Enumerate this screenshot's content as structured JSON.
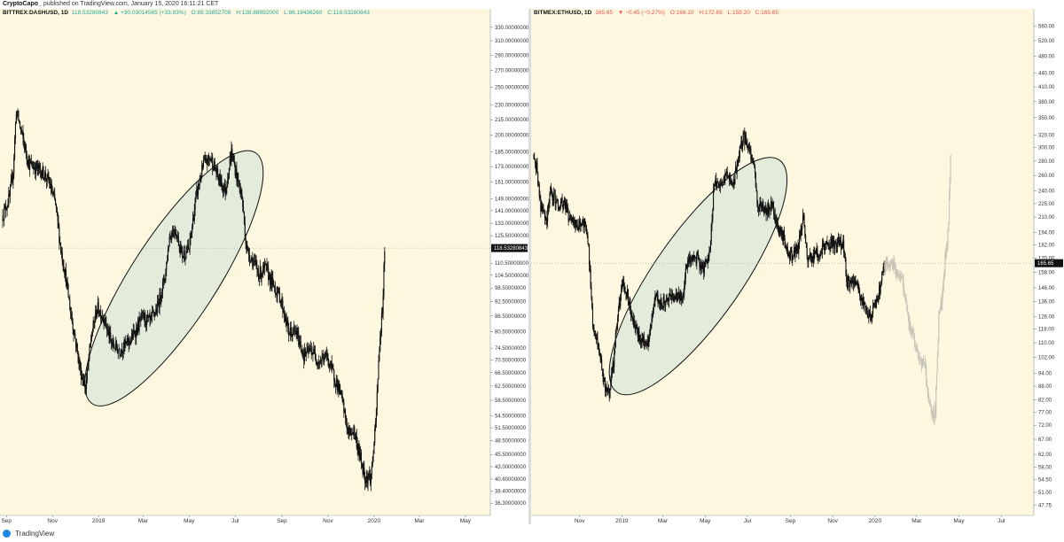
{
  "header": {
    "author": "CryptoCapo_",
    "published": "published on TradingView.com, January 15, 2020 16:11:21 CET"
  },
  "footer": {
    "brand": "TradingView"
  },
  "colors": {
    "plot_bg": "#fdf7e0",
    "ellipse_fill": "#e3ecdb",
    "candle": "#111111",
    "projection": "#c9c4b8",
    "price_box": "#111111"
  },
  "chart_data": [
    {
      "type": "candlestick",
      "legend": {
        "symbol": "BITTREX:DASHUSD, 1D",
        "last": "118.53280843",
        "change": "▲ +30.03014565 (+33.93%)",
        "open": "O:89.33852708",
        "high": "H:138.88992000",
        "low": "L:86.19436260",
        "close": "C:118.53280843"
      },
      "y_axis": {
        "scale": "log",
        "range": [
          34.3,
          345
        ],
        "ticks": [
          "36.30000000",
          "38.40000000",
          "40.60000000",
          "43.00000000",
          "45.50000000",
          "48.50000000",
          "51.50000000",
          "54.50000000",
          "58.50000000",
          "62.50000000",
          "66.50000000",
          "70.50000000",
          "74.50000000",
          "80.50000000",
          "86.50000000",
          "92.50000000",
          "98.50000000",
          "104.50000000",
          "110.50000000",
          "125.50000000",
          "133.00000000",
          "141.00000000",
          "149.00000000",
          "161.00000000",
          "173.00000000",
          "185.00000000",
          "200.00000000",
          "215.00000000",
          "230.00000000",
          "250.00000000",
          "270.00000000",
          "290.00000000",
          "310.00000000",
          "330.00000000"
        ],
        "tick_values": [
          36.3,
          38.4,
          40.6,
          43,
          45.5,
          48.5,
          51.5,
          54.5,
          58.5,
          62.5,
          66.5,
          70.5,
          74.5,
          80.5,
          86.5,
          92.5,
          98.5,
          104.5,
          110.5,
          125.5,
          133,
          141,
          149,
          161,
          173,
          185,
          200,
          215,
          230,
          250,
          270,
          290,
          310,
          330
        ],
        "last_price_label": "118.53280843",
        "last_price": 118.53
      },
      "x_axis": {
        "range": [
          "2018-08-27",
          "2020-06-03"
        ],
        "labels": [
          "Sep",
          "Nov",
          "2019",
          "Mar",
          "May",
          "Jul",
          "Sep",
          "Nov",
          "2020",
          "Mar",
          "May"
        ],
        "label_dates": [
          "2018-09-01",
          "2018-11-01",
          "2019-01-01",
          "2019-03-01",
          "2019-05-01",
          "2019-07-01",
          "2019-09-01",
          "2019-11-01",
          "2020-01-01",
          "2020-03-01",
          "2020-05-01"
        ]
      },
      "anchors": [
        [
          "2018-08-27",
          138
        ],
        [
          "2018-09-05",
          150
        ],
        [
          "2018-09-10",
          170
        ],
        [
          "2018-09-14",
          225
        ],
        [
          "2018-09-20",
          205
        ],
        [
          "2018-09-25",
          190
        ],
        [
          "2018-10-01",
          175
        ],
        [
          "2018-10-10",
          172
        ],
        [
          "2018-10-20",
          168
        ],
        [
          "2018-10-28",
          160
        ],
        [
          "2018-11-05",
          145
        ],
        [
          "2018-11-12",
          118
        ],
        [
          "2018-11-18",
          105
        ],
        [
          "2018-11-25",
          88
        ],
        [
          "2018-12-01",
          78
        ],
        [
          "2018-12-08",
          67
        ],
        [
          "2018-12-15",
          62
        ],
        [
          "2018-12-22",
          78
        ],
        [
          "2018-12-30",
          90
        ],
        [
          "2019-01-08",
          86
        ],
        [
          "2019-01-18",
          76
        ],
        [
          "2019-01-28",
          74
        ],
        [
          "2019-02-08",
          76
        ],
        [
          "2019-02-18",
          80
        ],
        [
          "2019-02-28",
          86
        ],
        [
          "2019-03-10",
          84
        ],
        [
          "2019-03-20",
          90
        ],
        [
          "2019-03-30",
          104
        ],
        [
          "2019-04-05",
          125
        ],
        [
          "2019-04-12",
          130
        ],
        [
          "2019-04-22",
          115
        ],
        [
          "2019-05-01",
          118
        ],
        [
          "2019-05-10",
          150
        ],
        [
          "2019-05-20",
          175
        ],
        [
          "2019-05-30",
          180
        ],
        [
          "2019-06-08",
          165
        ],
        [
          "2019-06-18",
          155
        ],
        [
          "2019-06-26",
          185
        ],
        [
          "2019-07-02",
          168
        ],
        [
          "2019-07-10",
          150
        ],
        [
          "2019-07-16",
          118
        ],
        [
          "2019-07-24",
          112
        ],
        [
          "2019-08-02",
          105
        ],
        [
          "2019-08-10",
          108
        ],
        [
          "2019-08-20",
          100
        ],
        [
          "2019-08-30",
          94
        ],
        [
          "2019-09-10",
          80
        ],
        [
          "2019-09-20",
          80
        ],
        [
          "2019-09-30",
          72
        ],
        [
          "2019-10-10",
          74
        ],
        [
          "2019-10-20",
          70
        ],
        [
          "2019-10-30",
          72
        ],
        [
          "2019-11-08",
          66
        ],
        [
          "2019-11-18",
          60
        ],
        [
          "2019-11-28",
          50
        ],
        [
          "2019-12-05",
          51
        ],
        [
          "2019-12-12",
          46
        ],
        [
          "2019-12-20",
          41
        ],
        [
          "2019-12-28",
          41
        ],
        [
          "2020-01-03",
          52
        ],
        [
          "2020-01-08",
          75
        ],
        [
          "2020-01-12",
          89
        ],
        [
          "2020-01-15",
          118.5
        ]
      ],
      "ellipse": {
        "center": [
          "2019-04-11",
          103
        ],
        "rx_days": 135,
        "span_value": [
          60,
          225
        ],
        "angle_deg": -57
      }
    },
    {
      "type": "candlestick",
      "legend": {
        "symbol": "BITMEX:ETHUSD, 1D",
        "last": "165.65",
        "change": "▼ −0.45 (−0.27%)",
        "open": "O:166.10",
        "high": "H:172.65",
        "low": "L:159.20",
        "close": "C:165.65"
      },
      "y_axis": {
        "scale": "log",
        "range": [
          45.3,
          585
        ],
        "ticks": [
          "47.75",
          "51.00",
          "54.50",
          "58.00",
          "62.00",
          "67.00",
          "72.00",
          "77.00",
          "82.00",
          "88.00",
          "94.00",
          "102.00",
          "110.00",
          "118.00",
          "126.00",
          "136.00",
          "146.00",
          "158.00",
          "170.00",
          "182.00",
          "194.00",
          "210.00",
          "225.00",
          "240.00",
          "260.00",
          "280.00",
          "300.00",
          "320.00",
          "350.00",
          "380.00",
          "410.00",
          "440.00",
          "480.00",
          "520.00",
          "560.00"
        ],
        "tick_values": [
          47.75,
          51,
          54.5,
          58,
          62,
          67,
          72,
          77,
          82,
          88,
          94,
          102,
          110,
          118,
          126,
          136,
          146,
          158,
          170,
          182,
          194,
          210,
          225,
          240,
          260,
          280,
          300,
          320,
          350,
          380,
          410,
          440,
          480,
          520,
          560
        ],
        "last_price_label": "165.65",
        "last_price": 165.65
      },
      "x_axis": {
        "range": [
          "2018-08-27",
          "2020-08-17"
        ],
        "labels": [
          "Nov",
          "2019",
          "Mar",
          "May",
          "Jul",
          "Sep",
          "Nov",
          "2020",
          "Mar",
          "May",
          "Jul"
        ],
        "label_dates": [
          "2018-11-01",
          "2019-01-01",
          "2019-03-01",
          "2019-05-01",
          "2019-07-01",
          "2019-09-01",
          "2019-11-01",
          "2020-01-01",
          "2020-03-01",
          "2020-05-01",
          "2020-07-01"
        ]
      },
      "anchors": [
        [
          "2018-08-27",
          290
        ],
        [
          "2018-08-31",
          270
        ],
        [
          "2018-09-06",
          220
        ],
        [
          "2018-09-14",
          205
        ],
        [
          "2018-09-20",
          240
        ],
        [
          "2018-09-30",
          225
        ],
        [
          "2018-10-10",
          225
        ],
        [
          "2018-10-20",
          205
        ],
        [
          "2018-10-28",
          200
        ],
        [
          "2018-11-08",
          205
        ],
        [
          "2018-11-14",
          180
        ],
        [
          "2018-11-20",
          120
        ],
        [
          "2018-11-28",
          110
        ],
        [
          "2018-12-06",
          90
        ],
        [
          "2018-12-14",
          84
        ],
        [
          "2018-12-20",
          100
        ],
        [
          "2018-12-26",
          128
        ],
        [
          "2019-01-02",
          150
        ],
        [
          "2019-01-10",
          140
        ],
        [
          "2019-01-18",
          122
        ],
        [
          "2019-01-28",
          112
        ],
        [
          "2019-02-08",
          110
        ],
        [
          "2019-02-18",
          140
        ],
        [
          "2019-02-28",
          135
        ],
        [
          "2019-03-10",
          138
        ],
        [
          "2019-03-20",
          138
        ],
        [
          "2019-03-30",
          140
        ],
        [
          "2019-04-05",
          165
        ],
        [
          "2019-04-12",
          170
        ],
        [
          "2019-04-20",
          170
        ],
        [
          "2019-04-28",
          160
        ],
        [
          "2019-05-08",
          175
        ],
        [
          "2019-05-14",
          250
        ],
        [
          "2019-05-24",
          245
        ],
        [
          "2019-06-01",
          265
        ],
        [
          "2019-06-10",
          245
        ],
        [
          "2019-06-20",
          295
        ],
        [
          "2019-06-26",
          318
        ],
        [
          "2019-07-02",
          300
        ],
        [
          "2019-07-10",
          280
        ],
        [
          "2019-07-16",
          220
        ],
        [
          "2019-07-22",
          220
        ],
        [
          "2019-07-30",
          215
        ],
        [
          "2019-08-06",
          225
        ],
        [
          "2019-08-12",
          200
        ],
        [
          "2019-08-22",
          190
        ],
        [
          "2019-08-30",
          170
        ],
        [
          "2019-09-05",
          175
        ],
        [
          "2019-09-12",
          180
        ],
        [
          "2019-09-20",
          210
        ],
        [
          "2019-09-26",
          168
        ],
        [
          "2019-10-06",
          172
        ],
        [
          "2019-10-16",
          178
        ],
        [
          "2019-10-26",
          182
        ],
        [
          "2019-11-06",
          185
        ],
        [
          "2019-11-16",
          182
        ],
        [
          "2019-11-22",
          150
        ],
        [
          "2019-11-30",
          150
        ],
        [
          "2019-12-08",
          145
        ],
        [
          "2019-12-18",
          130
        ],
        [
          "2019-12-26",
          128
        ],
        [
          "2020-01-02",
          135
        ],
        [
          "2020-01-08",
          145
        ],
        [
          "2020-01-12",
          158
        ],
        [
          "2020-01-15",
          165.65
        ]
      ],
      "projection": [
        [
          "2020-01-15",
          165
        ],
        [
          "2020-01-25",
          168
        ],
        [
          "2020-02-02",
          155
        ],
        [
          "2020-02-10",
          150
        ],
        [
          "2020-02-18",
          122
        ],
        [
          "2020-02-26",
          112
        ],
        [
          "2020-03-06",
          100
        ],
        [
          "2020-03-13",
          97
        ],
        [
          "2020-03-18",
          80
        ],
        [
          "2020-03-24",
          76
        ],
        [
          "2020-03-28",
          78
        ],
        [
          "2020-04-02",
          125
        ],
        [
          "2020-04-07",
          140
        ],
        [
          "2020-04-11",
          170
        ],
        [
          "2020-04-15",
          190
        ],
        [
          "2020-04-19",
          280
        ]
      ],
      "ellipse": {
        "center": [
          "2019-04-21",
          155
        ],
        "rx_days": 150,
        "span_value": [
          85,
          340
        ],
        "angle_deg": -55
      }
    }
  ]
}
